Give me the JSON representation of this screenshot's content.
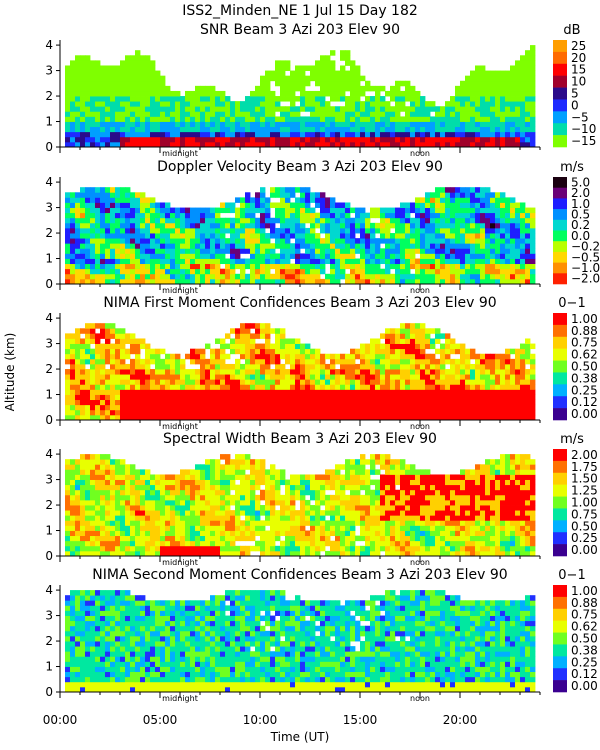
{
  "figure": {
    "title": "ISS2_Minden_NE    1 Jul 15 Day 182",
    "xlabel": "Time (UT)",
    "ylabel": "Altitude (km)",
    "x_ticks": [
      "00:00",
      "05:00",
      "10:00",
      "15:00",
      "20:00"
    ],
    "midnight_label": "midnight",
    "noon_label": "noon"
  },
  "chart_data": [
    {
      "type": "heatmap",
      "title": "SNR Beam 3 Azi 203 Elev 90",
      "unit": "dB",
      "xlabel": "Time (UT)",
      "ylabel": "Altitude (km)",
      "xlim": [
        0,
        24
      ],
      "ylim": [
        0,
        4.2
      ],
      "y_ticks": [
        0,
        1,
        2,
        3,
        4
      ],
      "colorbar": {
        "labels": [
          "25",
          "20",
          "15",
          "10",
          "5",
          "0",
          "−5",
          "−10",
          "−15"
        ],
        "colors": [
          "#ff9e00",
          "#ff6a00",
          "#ff0000",
          "#a0002a",
          "#2a0a8a",
          "#1e2aff",
          "#00a0ff",
          "#00ddaa",
          "#7fff00"
        ]
      },
      "pattern": "snr"
    },
    {
      "type": "heatmap",
      "title": "Doppler Velocity Beam 3 Azi 203 Elev 90",
      "unit": "m/s",
      "xlabel": "Time (UT)",
      "ylabel": "Altitude (km)",
      "xlim": [
        0,
        24
      ],
      "ylim": [
        0,
        4.2
      ],
      "y_ticks": [
        0,
        1,
        2,
        3,
        4
      ],
      "colorbar": {
        "labels": [
          "5.0",
          "2.0",
          "1.0",
          "0.5",
          "0.2",
          "0.0",
          "−0.2",
          "−0.5",
          "−1.0",
          "−2.0"
        ],
        "colors": [
          "#1a0010",
          "#6a0078",
          "#1e1eff",
          "#0090ff",
          "#00d8d0",
          "#00ff60",
          "#b8ff00",
          "#ffd800",
          "#ff9000",
          "#ff2000"
        ]
      },
      "pattern": "doppler"
    },
    {
      "type": "heatmap",
      "title": "NIMA First Moment Confidences Beam 3 Azi 203 Elev 90",
      "unit": "0−1",
      "xlabel": "Time (UT)",
      "ylabel": "Altitude (km)",
      "xlim": [
        0,
        24
      ],
      "ylim": [
        0,
        4.2
      ],
      "y_ticks": [
        0,
        1,
        2,
        3,
        4
      ],
      "colorbar": {
        "labels": [
          "1.00",
          "0.88",
          "0.75",
          "0.62",
          "0.50",
          "0.38",
          "0.25",
          "0.12",
          "0.00"
        ],
        "colors": [
          "#ff0000",
          "#ff7000",
          "#ffd000",
          "#e8ff00",
          "#70ff20",
          "#00e8a0",
          "#00b0ff",
          "#2030ff",
          "#3a0090"
        ]
      },
      "pattern": "conf1"
    },
    {
      "type": "heatmap",
      "title": "Spectral Width Beam 3 Azi 203 Elev 90",
      "unit": "m/s",
      "xlabel": "Time (UT)",
      "ylabel": "Altitude (km)",
      "xlim": [
        0,
        24
      ],
      "ylim": [
        0,
        4.2
      ],
      "y_ticks": [
        0,
        1,
        2,
        3,
        4
      ],
      "colorbar": {
        "labels": [
          "2.00",
          "1.75",
          "1.50",
          "1.25",
          "1.00",
          "0.75",
          "0.50",
          "0.25",
          "0.00"
        ],
        "colors": [
          "#ff0000",
          "#ff7000",
          "#ffd000",
          "#e8ff00",
          "#70ff20",
          "#00e8a0",
          "#00b0ff",
          "#2030ff",
          "#3a0090"
        ]
      },
      "pattern": "width"
    },
    {
      "type": "heatmap",
      "title": "NIMA Second Moment Confidences Beam 3 Azi 203 Elev 90",
      "unit": "0−1",
      "xlabel": "Time (UT)",
      "ylabel": "Altitude (km)",
      "xlim": [
        0,
        24
      ],
      "ylim": [
        0,
        4.2
      ],
      "y_ticks": [
        0,
        1,
        2,
        3,
        4
      ],
      "colorbar": {
        "labels": [
          "1.00",
          "0.88",
          "0.75",
          "0.62",
          "0.50",
          "0.38",
          "0.25",
          "0.12",
          "0.00"
        ],
        "colors": [
          "#ff0000",
          "#ff7000",
          "#ffd000",
          "#e8ff00",
          "#70ff20",
          "#00e8a0",
          "#00b0ff",
          "#2030ff",
          "#3a0090"
        ]
      },
      "pattern": "conf2"
    }
  ]
}
